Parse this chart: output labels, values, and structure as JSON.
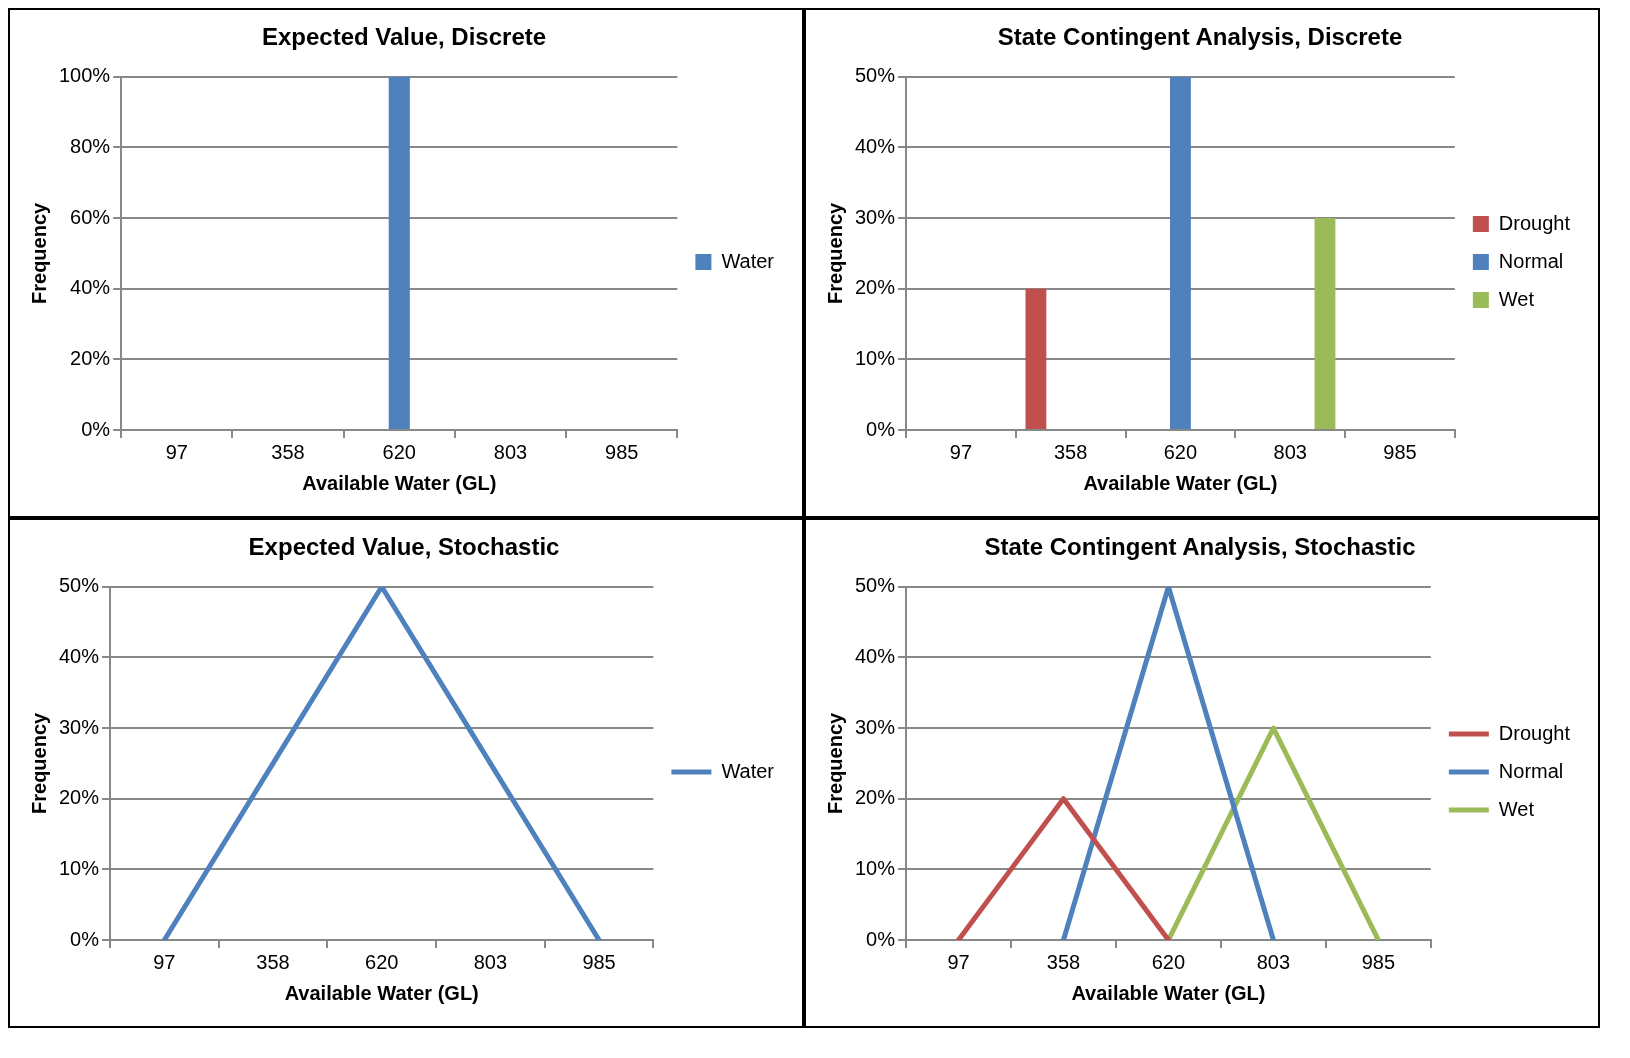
{
  "chart_data": [
    {
      "type": "bar",
      "title": "Expected Value, Discrete",
      "xlabel": "Available Water (GL)",
      "ylabel": "Frequency",
      "categories": [
        "97",
        "358",
        "620",
        "803",
        "985"
      ],
      "series": [
        {
          "name": "Water",
          "color": "#4f81bd",
          "values": [
            0,
            0,
            100,
            0,
            0
          ]
        }
      ],
      "ylim": [
        0,
        100
      ],
      "yticks": [
        {
          "value": 0,
          "label": "0%"
        },
        {
          "value": 20,
          "label": "20%"
        },
        {
          "value": 40,
          "label": "40%"
        },
        {
          "value": 60,
          "label": "60%"
        },
        {
          "value": 80,
          "label": "80%"
        },
        {
          "value": 100,
          "label": "100%"
        }
      ],
      "grid": "y",
      "legend": "right"
    },
    {
      "type": "bar",
      "title": "State Contingent Analysis, Discrete",
      "xlabel": "Available Water (GL)",
      "ylabel": "Frequency",
      "categories": [
        "97",
        "358",
        "620",
        "803",
        "985"
      ],
      "series": [
        {
          "name": "Drought",
          "color": "#c0504d",
          "values": [
            0,
            20,
            0,
            0,
            0
          ]
        },
        {
          "name": "Normal",
          "color": "#4f81bd",
          "values": [
            0,
            0,
            50,
            0,
            0
          ]
        },
        {
          "name": "Wet",
          "color": "#9bbb59",
          "values": [
            0,
            0,
            0,
            30,
            0
          ]
        }
      ],
      "ylim": [
        0,
        50
      ],
      "yticks": [
        {
          "value": 0,
          "label": "0%"
        },
        {
          "value": 10,
          "label": "10%"
        },
        {
          "value": 20,
          "label": "20%"
        },
        {
          "value": 30,
          "label": "30%"
        },
        {
          "value": 40,
          "label": "40%"
        },
        {
          "value": 50,
          "label": "50%"
        }
      ],
      "grid": "y",
      "legend": "right"
    },
    {
      "type": "line",
      "title": "Expected Value, Stochastic",
      "xlabel": "Available Water (GL)",
      "ylabel": "Frequency",
      "categories": [
        "97",
        "358",
        "620",
        "803",
        "985"
      ],
      "series": [
        {
          "name": "Water",
          "color": "#4f81bd",
          "values": [
            0,
            25,
            50,
            25,
            0
          ]
        }
      ],
      "ylim": [
        0,
        50
      ],
      "yticks": [
        {
          "value": 0,
          "label": "0%"
        },
        {
          "value": 10,
          "label": "10%"
        },
        {
          "value": 20,
          "label": "20%"
        },
        {
          "value": 30,
          "label": "30%"
        },
        {
          "value": 40,
          "label": "40%"
        },
        {
          "value": 50,
          "label": "50%"
        }
      ],
      "grid": "y",
      "legend": "right"
    },
    {
      "type": "line",
      "title": "State Contingent Analysis, Stochastic",
      "xlabel": "Available Water (GL)",
      "ylabel": "Frequency",
      "categories": [
        "97",
        "358",
        "620",
        "803",
        "985"
      ],
      "series": [
        {
          "name": "Drought",
          "color": "#c0504d",
          "values": [
            0,
            20,
            0,
            null,
            null
          ]
        },
        {
          "name": "Normal",
          "color": "#4f81bd",
          "values": [
            null,
            0,
            50,
            0,
            null
          ]
        },
        {
          "name": "Wet",
          "color": "#9bbb59",
          "values": [
            null,
            null,
            0,
            30,
            0
          ]
        }
      ],
      "ylim": [
        0,
        50
      ],
      "yticks": [
        {
          "value": 0,
          "label": "0%"
        },
        {
          "value": 10,
          "label": "10%"
        },
        {
          "value": 20,
          "label": "20%"
        },
        {
          "value": 30,
          "label": "30%"
        },
        {
          "value": 40,
          "label": "40%"
        },
        {
          "value": 50,
          "label": "50%"
        }
      ],
      "grid": "y",
      "legend": "right"
    }
  ]
}
